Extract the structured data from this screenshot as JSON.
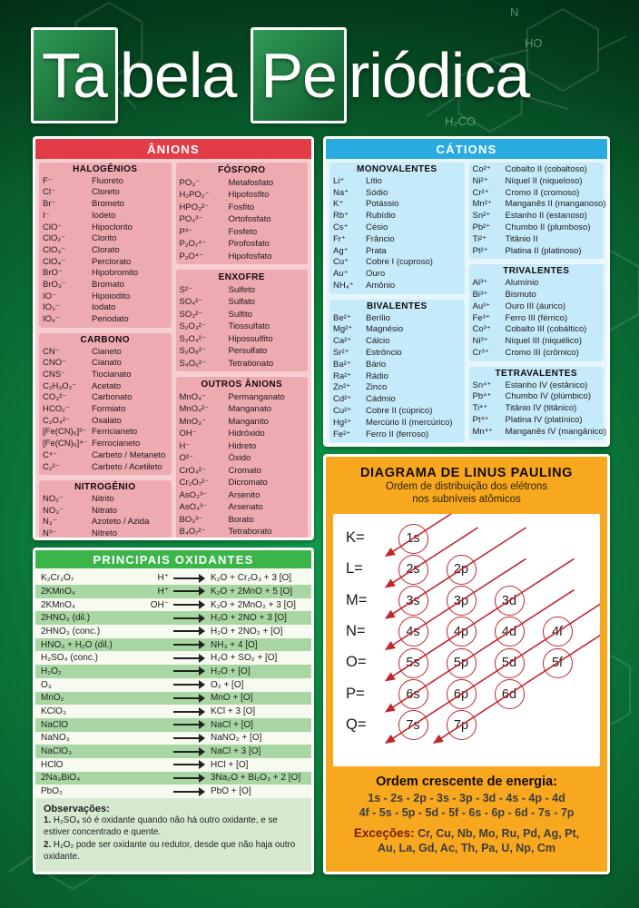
{
  "title": {
    "tile1": "Ta",
    "rest1": "bela",
    "tile2": "Pe",
    "rest2": "riódica"
  },
  "background": {
    "labels": [
      "HO",
      "H₂CO",
      "N"
    ]
  },
  "colors": {
    "anion_red": "#e23c46",
    "anion_pink": "#edaab1",
    "cation_blue": "#29aae1",
    "cation_lightblue": "#c5ebfa",
    "oxidant_green": "#3bb54a",
    "oxidant_row_green": "#a9d7a4",
    "pauling_orange": "#f8a81f",
    "arrow_red": "#c1272d",
    "poster_green": "#0b7d3c"
  },
  "anions": {
    "header": "ÂNIONS",
    "col_left": [
      {
        "title": "HALOGÊNIOS",
        "rows": [
          [
            "F⁻",
            "Fluoreto"
          ],
          [
            "Cl⁻",
            "Cloreto"
          ],
          [
            "Br⁻",
            "Brometo"
          ],
          [
            "I⁻",
            "Iodeto"
          ],
          [
            "ClO⁻",
            "Hipoclorito"
          ],
          [
            "ClO₂⁻",
            "Clorito"
          ],
          [
            "ClO₃⁻",
            "Clorato"
          ],
          [
            "ClO₄⁻",
            "Perclorato"
          ],
          [
            "BrO⁻",
            "Hipobromito"
          ],
          [
            "BrO₃⁻",
            "Bromato"
          ],
          [
            "IO⁻",
            "Hipoiodito"
          ],
          [
            "IO₃⁻",
            "Iodato"
          ],
          [
            "IO₄⁻",
            "Periodato"
          ]
        ]
      },
      {
        "title": "CARBONO",
        "rows": [
          [
            "CN⁻",
            "Cianeto"
          ],
          [
            "CNO⁻",
            "Cianato"
          ],
          [
            "CNS⁻",
            "Tiocianato"
          ],
          [
            "C₂H₃O₂⁻",
            "Acetato"
          ],
          [
            "CO₃²⁻",
            "Carbonato"
          ],
          [
            "HCO₂⁻",
            "Formiato"
          ],
          [
            "C₂O₄²⁻",
            "Oxalato"
          ],
          [
            "[Fe(CN)₆]³⁻",
            "Ferricianeto"
          ],
          [
            "[Fe(CN)₆]⁴⁻",
            "Ferrocianeto"
          ],
          [
            "C⁴⁻",
            "Carbeto / Metaneto"
          ],
          [
            "C₂²⁻",
            "Carbeto / Acetileto"
          ]
        ]
      },
      {
        "title": "NITROGÊNIO",
        "rows": [
          [
            "NO₂⁻",
            "Nitrito"
          ],
          [
            "NO₃⁻",
            "Nitrato"
          ],
          [
            "N₃⁻",
            "Azoteto / Azida"
          ],
          [
            "N³⁻",
            "Nitreto"
          ]
        ]
      }
    ],
    "col_right": [
      {
        "title": "FÓSFORO",
        "rows": [
          [
            "PO₃⁻",
            "Metafosfato"
          ],
          [
            "H₂PO₂⁻",
            "Hipofosfito"
          ],
          [
            "HPO₃²⁻",
            "Fosfito"
          ],
          [
            "PO₄³⁻",
            "Ortofosfato"
          ],
          [
            "P³⁻",
            "Fosfeto"
          ],
          [
            "P₂O₇⁴⁻",
            "Pirofosfato"
          ],
          [
            "P₂O⁴⁻",
            "Hipofosfato"
          ]
        ]
      },
      {
        "title": "ENXOFRE",
        "rows": [
          [
            "S²⁻",
            "Sulfeto"
          ],
          [
            "SO₄²⁻",
            "Sulfato"
          ],
          [
            "SO₃²⁻",
            "Sulfito"
          ],
          [
            "S₂O₃²⁻",
            "Tiossulfato"
          ],
          [
            "S₂O₄²⁻",
            "Hipossulfito"
          ],
          [
            "S₂O₈²⁻",
            "Persulfato"
          ],
          [
            "S₄O₆²⁻",
            "Tetrationato"
          ]
        ]
      },
      {
        "title": "OUTROS ÂNIONS",
        "rows": [
          [
            "MnO₄⁻",
            "Permanganato"
          ],
          [
            "MnO₄²⁻",
            "Manganato"
          ],
          [
            "MnO₃⁻",
            "Manganito"
          ],
          [
            "OH⁻",
            "Hidróxido"
          ],
          [
            "H⁻",
            "Hidreto"
          ],
          [
            "O²⁻",
            "Óxido"
          ],
          [
            "CrO₄²⁻",
            "Cromato"
          ],
          [
            "Cr₂O₇²⁻",
            "Dicromato"
          ],
          [
            "AsO₃³⁻",
            "Arsenito"
          ],
          [
            "AsO₄³⁻",
            "Arsenato"
          ],
          [
            "BO₃³⁻",
            "Borato"
          ],
          [
            "B₄O₇²⁻",
            "Tetraborato"
          ]
        ]
      }
    ]
  },
  "cations": {
    "header": "CÁTIONS",
    "col_left": [
      {
        "title": "MONOVALENTES",
        "rows": [
          [
            "Li⁺",
            "Lítio"
          ],
          [
            "Na⁺",
            "Sódio"
          ],
          [
            "K⁺",
            "Potássio"
          ],
          [
            "Rb⁺",
            "Rubídio"
          ],
          [
            "Cs⁺",
            "Césio"
          ],
          [
            "Fr⁺",
            "Frâncio"
          ],
          [
            "Ag⁺",
            "Prata"
          ],
          [
            "Cu⁺",
            "Cobre I (cuproso)"
          ],
          [
            "Au⁺",
            "Ouro"
          ],
          [
            "NH₄⁺",
            "Amônio"
          ]
        ]
      },
      {
        "title": "BIVALENTES",
        "rows": [
          [
            "Be²⁺",
            "Berílio"
          ],
          [
            "Mg²⁺",
            "Magnésio"
          ],
          [
            "Ca²⁺",
            "Cálcio"
          ],
          [
            "Sr²⁺",
            "Estrôncio"
          ],
          [
            "Ba²⁺",
            "Bário"
          ],
          [
            "Ra²⁺",
            "Rádio"
          ],
          [
            "Zn²⁺",
            "Zinco"
          ],
          [
            "Cd²⁺",
            "Cádmio"
          ],
          [
            "Cu²⁺",
            "Cobre II (cúprico)"
          ],
          [
            "Hg²⁺",
            "Mercúrio II (mercúrico)"
          ],
          [
            "Fe²⁺",
            "Ferro II (ferroso)"
          ]
        ]
      }
    ],
    "col_right": [
      {
        "title": "",
        "rows": [
          [
            "Co²⁺",
            "Cobalto II (cobaltoso)"
          ],
          [
            "Ni²⁺",
            "Níquel II (niqueloso)"
          ],
          [
            "Cr²⁺",
            "Cromo II (cromoso)"
          ],
          [
            "Mn²⁺",
            "Manganês II (manganoso)"
          ],
          [
            "Sn²⁺",
            "Estanho II (estanoso)"
          ],
          [
            "Pb²⁺",
            "Chumbo II (plumboso)"
          ],
          [
            "Ti²⁺",
            "Titânio II"
          ],
          [
            "Pt²⁺",
            "Platina II (platinoso)"
          ]
        ]
      },
      {
        "title": "TRIVALENTES",
        "rows": [
          [
            "Al³⁺",
            "Alumínio"
          ],
          [
            "Bi³⁺",
            "Bismuto"
          ],
          [
            "Au³⁺",
            "Ouro III (áurico)"
          ],
          [
            "Fe³⁺",
            "Ferro III (férrico)"
          ],
          [
            "Co³⁺",
            "Cobalto III (cobáltico)"
          ],
          [
            "Ni³⁺",
            "Níquel III (niquélico)"
          ],
          [
            "Cr³⁺",
            "Cromo III (crômico)"
          ]
        ]
      },
      {
        "title": "TETRAVALENTES",
        "rows": [
          [
            "Sn⁴⁺",
            "Estanho IV (estânico)"
          ],
          [
            "Pb⁴⁺",
            "Chumbo IV (plúmbico)"
          ],
          [
            "Ti⁴⁺",
            "Titânio IV (titânico)"
          ],
          [
            "Pt⁴⁺",
            "Platina IV (platínico)"
          ],
          [
            "Mn⁴⁺",
            "Manganês IV (mangânico)"
          ]
        ]
      }
    ]
  },
  "oxidants": {
    "header": "PRINCIPAIS OXIDANTES",
    "rows": [
      {
        "reagent": "K₂Cr₂O₇",
        "cond": "H⁺",
        "product": "K₂O + Cr₂O₃ + 3 [O]"
      },
      {
        "reagent": "2KMnO₄",
        "cond": "H⁺",
        "product": "K₂O + 2MnO + 5 [O]"
      },
      {
        "reagent": "2KMnO₄",
        "cond": "OH⁻",
        "product": "K₂O + 2MnO₂ + 3 [O]"
      },
      {
        "reagent": "2HNO₃ (dil.)",
        "cond": "",
        "product": "H₂O + 2NO + 3 [O]"
      },
      {
        "reagent": "2HNO₃ (conc.)",
        "cond": "",
        "product": "H₂O + 2NO₂ + [O]"
      },
      {
        "reagent": "HNO₃ + H₂O (dil.)",
        "cond": "",
        "product": "NH₃ + 4 [O]"
      },
      {
        "reagent": "H₂SO₄ (conc.)",
        "cond": "",
        "product": "H₂O + SO₂ + [O]"
      },
      {
        "reagent": "H₂O₂",
        "cond": "",
        "product": "H₂O + [O]"
      },
      {
        "reagent": "O₃",
        "cond": "",
        "product": "O₂ + [O]"
      },
      {
        "reagent": "MnO₂",
        "cond": "",
        "product": "MnO + [O]"
      },
      {
        "reagent": "KClO₃",
        "cond": "",
        "product": "KCl + 3 [O]"
      },
      {
        "reagent": "NaClO",
        "cond": "",
        "product": "NaCl + [O]"
      },
      {
        "reagent": "NaNO₃",
        "cond": "",
        "product": "NaNO₂ + [O]"
      },
      {
        "reagent": "NaClO₃",
        "cond": "",
        "product": "NaCl + 3 [O]"
      },
      {
        "reagent": "HClO",
        "cond": "",
        "product": "HCl + [O]"
      },
      {
        "reagent": "2Na₃BiO₄",
        "cond": "",
        "product": "3Na₂O + Bi₂O₃ + 2 [O]"
      },
      {
        "reagent": "PbO₂",
        "cond": "",
        "product": "PbO + [O]"
      }
    ],
    "obs_title": "Observações:",
    "obs": [
      {
        "num": "1.",
        "text": "H₂SO₄ só é oxidante quando não há outro oxidante, e se estiver concentrado e quente."
      },
      {
        "num": "2.",
        "text": "H₂O₂ pode ser oxidante ou redutor, desde que não haja outro oxidante."
      }
    ]
  },
  "pauling": {
    "title": "DIAGRAMA DE LINUS PAULING",
    "subtitle1": "Ordem de distribuição dos elétrons",
    "subtitle2": "nos subníveis atômicos",
    "rows": [
      {
        "label": "K=",
        "orbitals": [
          "1s"
        ]
      },
      {
        "label": "L=",
        "orbitals": [
          "2s",
          "2p"
        ]
      },
      {
        "label": "M=",
        "orbitals": [
          "3s",
          "3p",
          "3d"
        ]
      },
      {
        "label": "N=",
        "orbitals": [
          "4s",
          "4p",
          "4d",
          "4f"
        ]
      },
      {
        "label": "O=",
        "orbitals": [
          "5s",
          "5p",
          "5d",
          "5f"
        ]
      },
      {
        "label": "P=",
        "orbitals": [
          "6s",
          "6p",
          "6d"
        ]
      },
      {
        "label": "Q=",
        "orbitals": [
          "7s",
          "7p"
        ]
      }
    ],
    "energy_title": "Ordem crescente de energia:",
    "energy_line1": "1s - 2s - 2p - 3s - 3p - 3d - 4s - 4p - 4d",
    "energy_line2": "4f - 5s - 5p - 5d - 5f - 6s - 6p - 6d - 7s - 7p",
    "exceptions_label": "Exceções:",
    "exceptions_text": "Cr, Cu, Nb, Mo, Ru, Pd, Ag, Pt, Au, La, Gd, Ac, Th, Pa, U, Np, Cm"
  }
}
